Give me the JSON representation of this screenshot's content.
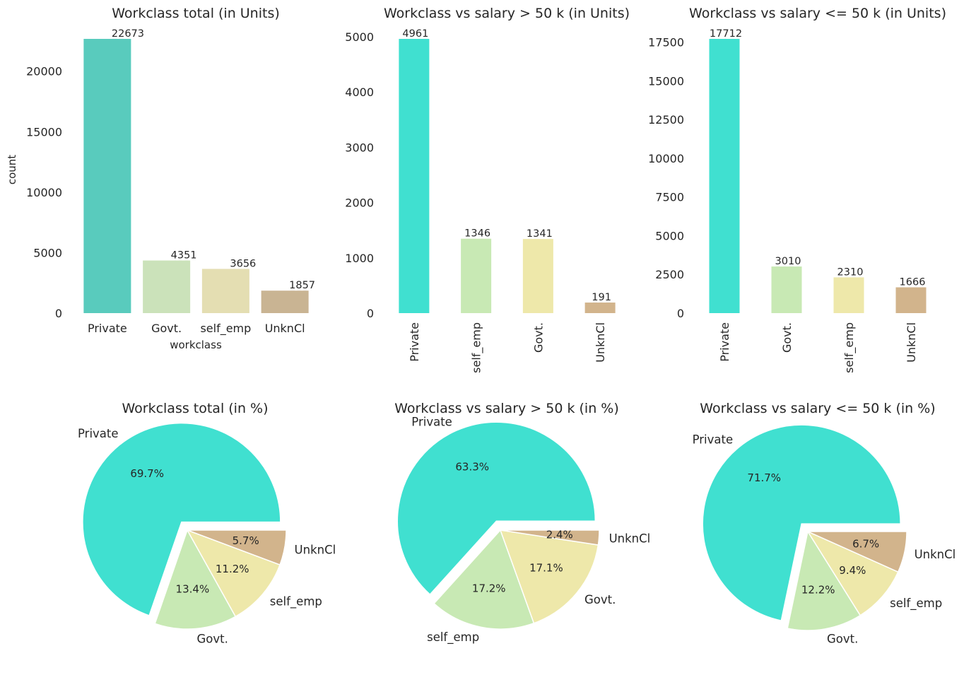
{
  "chart_data": [
    {
      "type": "bar",
      "title": "Workclass total (in Units)",
      "categories": [
        "Private",
        "Govt.",
        "self_emp",
        "UnknCl"
      ],
      "values": [
        22673,
        4351,
        3656,
        1857
      ],
      "labels": [
        "22673",
        "4351",
        "3656",
        "1857"
      ],
      "colors": [
        "#59cbbd",
        "#cbe2ba",
        "#e4deb2",
        "#c9b493"
      ],
      "xlabel": "workclass",
      "ylabel": "count",
      "ylim": [
        0,
        22673
      ],
      "yticks": [
        "0",
        "5000",
        "10000",
        "15000",
        "20000"
      ],
      "tick_rotation": "horizontal"
    },
    {
      "type": "bar",
      "title": "Workclass vs salary > 50 k (in Units)",
      "categories": [
        "Private",
        "self_emp",
        "Govt.",
        "UnknCl"
      ],
      "values": [
        4961,
        1346,
        1341,
        191
      ],
      "labels": [
        "4961",
        "1346",
        "1341",
        "191"
      ],
      "colors": [
        "#40e0d0",
        "#c8e9b4",
        "#eee8aa",
        "#d2b48c"
      ],
      "xlabel": "",
      "ylabel": "",
      "ylim": [
        0,
        4961
      ],
      "yticks": [
        "0",
        "1000",
        "2000",
        "3000",
        "4000",
        "5000"
      ],
      "tick_rotation": "vertical"
    },
    {
      "type": "bar",
      "title": "Workclass vs salary <= 50 k (in Units)",
      "categories": [
        "Private",
        "Govt.",
        "self_emp",
        "UnknCl"
      ],
      "values": [
        17712,
        3010,
        2310,
        1666
      ],
      "labels": [
        "17712",
        "3010",
        "2310",
        "1666"
      ],
      "colors": [
        "#40e0d0",
        "#c8e9b4",
        "#eee8aa",
        "#d2b48c"
      ],
      "xlabel": "",
      "ylabel": "",
      "ylim": [
        0,
        17712
      ],
      "yticks": [
        "0",
        "2500",
        "5000",
        "7500",
        "10000",
        "12500",
        "15000",
        "17500"
      ],
      "tick_rotation": "vertical"
    },
    {
      "type": "pie",
      "title": "Workclass total (in %)",
      "labels": [
        "Private",
        "Govt.",
        "self_emp",
        "UnknCl"
      ],
      "values": [
        69.7,
        13.4,
        11.2,
        5.7
      ],
      "pct_labels": [
        "69.7%",
        "13.4%",
        "11.2%",
        "5.7%"
      ],
      "colors": [
        "#40e0d0",
        "#c8e9b4",
        "#eee8aa",
        "#d2b48c"
      ],
      "explode": [
        0.1,
        0,
        0,
        0
      ]
    },
    {
      "type": "pie",
      "title": "Workclass vs salary > 50 k (in %)",
      "labels": [
        "Private",
        "self_emp",
        "Govt.",
        "UnknCl"
      ],
      "values": [
        63.3,
        17.2,
        17.1,
        2.4
      ],
      "pct_labels": [
        "63.3%",
        "17.2%",
        "17.1%",
        "2.4%"
      ],
      "colors": [
        "#40e0d0",
        "#c8e9b4",
        "#eee8aa",
        "#d2b48c"
      ],
      "explode": [
        0.1,
        0,
        0,
        0
      ]
    },
    {
      "type": "pie",
      "title": "Workclass vs salary <= 50 k (in %)",
      "labels": [
        "Private",
        "Govt.",
        "self_emp",
        "UnknCl"
      ],
      "values": [
        71.7,
        12.2,
        9.4,
        6.7
      ],
      "pct_labels": [
        "71.7%",
        "12.2%",
        "9.4%",
        "6.7%"
      ],
      "colors": [
        "#40e0d0",
        "#c8e9b4",
        "#eee8aa",
        "#d2b48c"
      ],
      "explode": [
        0.1,
        0,
        0,
        0
      ]
    }
  ]
}
